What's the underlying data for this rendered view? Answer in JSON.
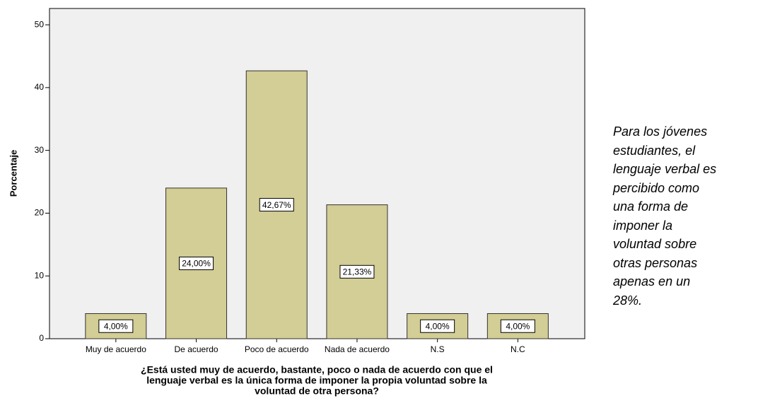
{
  "chart_data": {
    "type": "bar",
    "categories": [
      "Muy de acuerdo",
      "De acuerdo",
      "Poco de acuerdo",
      "Nada de acuerdo",
      "N.S",
      "N.C"
    ],
    "values": [
      4,
      24,
      42.67,
      21.33,
      4,
      4
    ],
    "value_labels": [
      "4,00%",
      "24,00%",
      "42,67%",
      "21,33%",
      "4,00%",
      "4,00%"
    ],
    "color": "#d3cd96",
    "ylabel": "Porcentaje",
    "xlabel": [
      "¿Está usted muy de acuerdo, bastante, poco o nada de acuerdo con que el",
      "lenguaje verbal es la única forma de imponer la propia voluntad sobre la",
      "voluntad de otra persona?"
    ],
    "ylim": [
      0,
      52.6
    ],
    "yticks": [
      0,
      10,
      20,
      30,
      40,
      50
    ],
    "grid": false
  },
  "note": [
    "Para los jóvenes",
    "estudiantes, el",
    "lenguaje verbal es",
    "percibido como",
    "una forma de",
    "imponer la",
    "voluntad sobre",
    "otras personas",
    "apenas en un",
    "28%."
  ]
}
